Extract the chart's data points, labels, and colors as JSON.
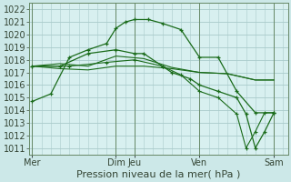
{
  "background_color": "#cce8e8",
  "plot_bg_color": "#d8f0f0",
  "grid_color": "#aacccc",
  "line_color": "#1a6b1a",
  "ylim": [
    1010.5,
    1022.5
  ],
  "yticks": [
    1011,
    1012,
    1013,
    1014,
    1015,
    1016,
    1017,
    1018,
    1019,
    1020,
    1021,
    1022
  ],
  "xlabel": "Pression niveau de la mer( hPa )",
  "xlabel_fontsize": 8,
  "tick_fontsize": 7,
  "day_labels": [
    "Mer",
    "Dim",
    "Jeu",
    "Ven",
    "Sam"
  ],
  "day_x": [
    0,
    9,
    11,
    18,
    26
  ],
  "xlim": [
    -0.3,
    27.5
  ],
  "series1_marker": {
    "x": [
      0,
      2,
      4,
      6,
      8,
      9,
      10,
      11,
      12.5,
      14,
      16,
      18,
      20,
      22,
      24,
      26
    ],
    "y": [
      1014.7,
      1015.3,
      1018.2,
      1018.8,
      1019.3,
      1020.5,
      1021.0,
      1021.2,
      1021.2,
      1020.9,
      1020.4,
      1018.2,
      1018.2,
      1015.5,
      1013.8,
      1013.8
    ]
  },
  "series2": {
    "x": [
      0,
      3,
      6,
      9,
      12,
      15,
      18,
      21,
      24,
      26
    ],
    "y": [
      1017.5,
      1017.7,
      1017.5,
      1018.3,
      1018.1,
      1017.4,
      1017.0,
      1016.9,
      1016.4,
      1016.4
    ]
  },
  "series3": {
    "x": [
      0,
      3,
      6,
      9,
      12,
      15,
      18,
      21,
      24,
      26
    ],
    "y": [
      1017.5,
      1017.3,
      1017.2,
      1017.5,
      1017.5,
      1017.3,
      1017.0,
      1016.9,
      1016.4,
      1016.4
    ]
  },
  "series4_marker": {
    "x": [
      0,
      3,
      6,
      9,
      11,
      12,
      14,
      15,
      17,
      18,
      20,
      22,
      23,
      24,
      25,
      26
    ],
    "y": [
      1017.5,
      1017.5,
      1018.5,
      1018.8,
      1018.5,
      1018.5,
      1017.5,
      1017.0,
      1016.5,
      1016.0,
      1015.5,
      1015.0,
      1013.7,
      1011.0,
      1012.3,
      1013.8
    ]
  },
  "series5_marker": {
    "x": [
      0,
      4,
      8,
      11,
      14,
      16,
      18,
      20,
      22,
      23,
      24,
      25,
      26
    ],
    "y": [
      1017.5,
      1017.5,
      1017.8,
      1018.0,
      1017.5,
      1016.8,
      1015.5,
      1015.0,
      1013.7,
      1011.0,
      1012.3,
      1013.8,
      1013.8
    ]
  }
}
